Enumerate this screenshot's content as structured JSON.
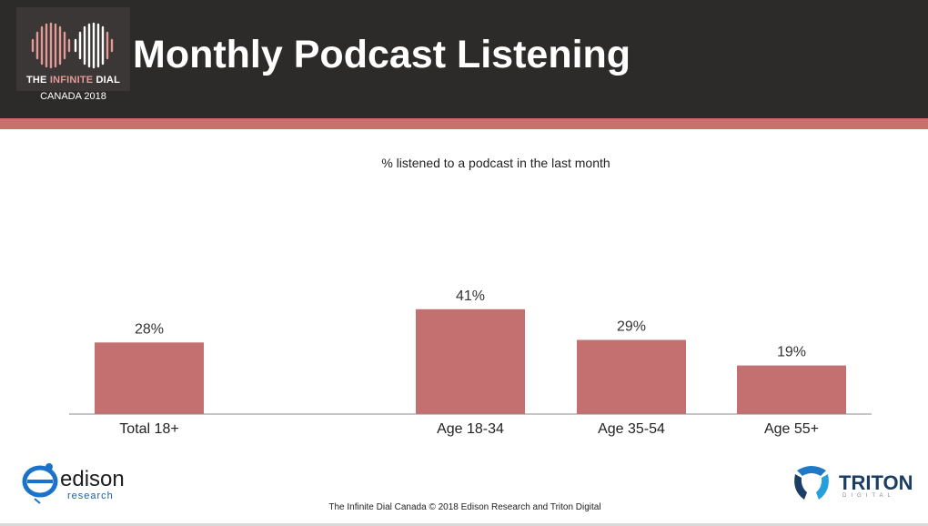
{
  "header": {
    "title": "Monthly Podcast Listening",
    "logo_title_part1": "THE ",
    "logo_title_part2": "INFINITE",
    "logo_title_part3": " DIAL",
    "logo_subtitle": "CANADA 2018"
  },
  "colors": {
    "header_bg": "#2d2a2a",
    "accent": "#c9706d",
    "bar": "#c47071"
  },
  "chart_data": {
    "type": "bar",
    "title": "% listened to a podcast in the last month",
    "categories": [
      "Total 18+",
      "Age 18-34",
      "Age 35-54",
      "Age 55+"
    ],
    "values": [
      28,
      41,
      29,
      19
    ],
    "value_labels": [
      "28%",
      "41%",
      "29%",
      "19%"
    ],
    "unit": "%",
    "ylim": [
      0,
      45
    ],
    "grid": false,
    "legend": "none"
  },
  "footer": {
    "text": "The Infinite Dial Canada  © 2018 Edison Research and Triton Digital",
    "edison_word": "edison",
    "edison_sub": "research",
    "triton_word": "TRITON",
    "triton_sub": "DIGITAL"
  }
}
